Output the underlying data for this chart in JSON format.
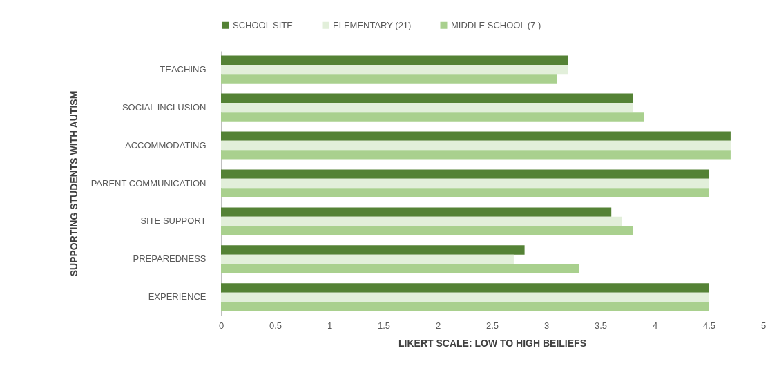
{
  "chart_data": {
    "type": "bar",
    "orientation": "horizontal",
    "xlabel": "LIKERT SCALE: LOW TO HIGH BEILIEFS",
    "ylabel": "SUPPORTING STUDENTS WITH AUTISM",
    "categories": [
      "TEACHING",
      "SOCIAL INCLUSION",
      "ACCOMMODATING",
      "PARENT COMMUNICATION",
      "SITE SUPPORT",
      "PREPAREDNESS",
      "EXPERIENCE"
    ],
    "series": [
      {
        "name": "SCHOOL SITE",
        "color": "#548235",
        "values": [
          3.2,
          3.8,
          4.7,
          4.5,
          3.6,
          2.8,
          4.5
        ]
      },
      {
        "name": "ELEMENTARY (21)",
        "color": "#e2efda",
        "values": [
          3.2,
          3.8,
          4.7,
          4.5,
          3.7,
          2.7,
          4.5
        ]
      },
      {
        "name": "MIDDLE SCHOOL  (7 )",
        "color": "#a9d08e",
        "values": [
          3.1,
          3.9,
          4.7,
          4.5,
          3.8,
          3.3,
          4.5
        ]
      }
    ],
    "xlim": [
      0,
      5
    ],
    "xticks": [
      0,
      0.5,
      1,
      1.5,
      2,
      2.5,
      3,
      3.5,
      4,
      4.5,
      5
    ],
    "grid": false,
    "legend": "top"
  }
}
